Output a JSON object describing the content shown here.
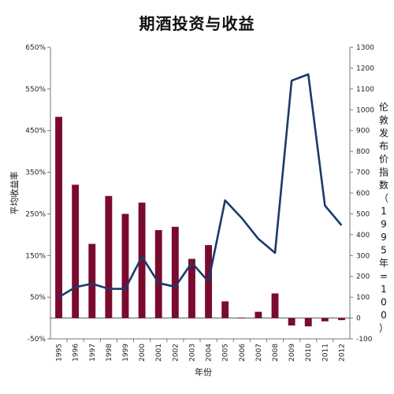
{
  "chart_data": {
    "type": "bar",
    "title": "期酒投资与收益",
    "xlabel": "年份",
    "ylabel": "平均收益率",
    "y2label": "伦敦发布价指数（1995年=100）",
    "categories": [
      "1995",
      "1996",
      "1997",
      "1998",
      "1999",
      "2000",
      "2001",
      "2002",
      "2003",
      "2004",
      "2005",
      "2006",
      "2007",
      "2008",
      "2009",
      "2010",
      "2011",
      "2012"
    ],
    "ylim": [
      -50,
      650
    ],
    "yticks": [
      "650%",
      "550%",
      "450%",
      "350%",
      "250%",
      "150%",
      "50%",
      "-50%"
    ],
    "y2lim": [
      -100,
      1300
    ],
    "y2ticks": [
      "1300",
      "1200",
      "1100",
      "1000",
      "900",
      "800",
      "700",
      "600",
      "500",
      "400",
      "300",
      "200",
      "100",
      "0",
      "-100"
    ],
    "series": [
      {
        "type": "bar",
        "axis": "left",
        "color": "#7a0a2e",
        "values": [
          483,
          320,
          178,
          293,
          250,
          277,
          211,
          219,
          142,
          175,
          40,
          1,
          15,
          59,
          -18,
          -20,
          -8,
          -5
        ]
      },
      {
        "type": "line",
        "axis": "right",
        "color": "#1b3a6b",
        "values": [
          100,
          148,
          165,
          140,
          140,
          295,
          168,
          150,
          265,
          175,
          565,
          480,
          380,
          313,
          1140,
          1170,
          540,
          445
        ]
      }
    ],
    "grid": false,
    "legend": "none"
  }
}
